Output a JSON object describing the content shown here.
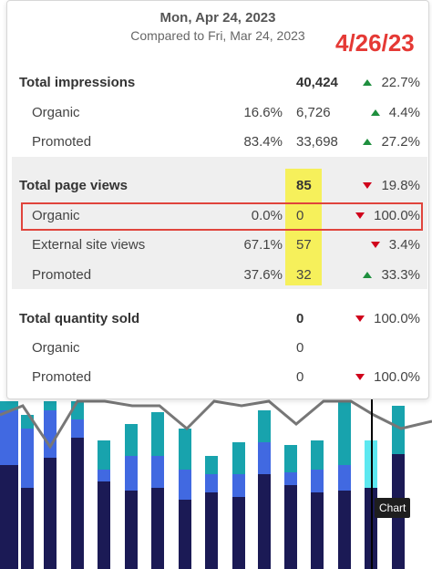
{
  "tooltip": {
    "date": "Mon, Apr 24, 2023",
    "compared": "Compared to Fri, Mar 24, 2023",
    "annotation": "4/26/23"
  },
  "rows": [
    {
      "label": "Total impressions",
      "pct": "",
      "value": "40,424",
      "change": "22.7%",
      "dir": "up"
    },
    {
      "label": "Organic",
      "pct": "16.6%",
      "value": "6,726",
      "change": "4.4%",
      "dir": "up"
    },
    {
      "label": "Promoted",
      "pct": "83.4%",
      "value": "33,698",
      "change": "27.2%",
      "dir": "up"
    },
    {
      "label": "Total page views",
      "pct": "",
      "value": "85",
      "change": "19.8%",
      "dir": "down"
    },
    {
      "label": "Organic",
      "pct": "0.0%",
      "value": "0",
      "change": "100.0%",
      "dir": "down"
    },
    {
      "label": "External site views",
      "pct": "67.1%",
      "value": "57",
      "change": "3.4%",
      "dir": "down"
    },
    {
      "label": "Promoted",
      "pct": "37.6%",
      "value": "32",
      "change": "33.3%",
      "dir": "up"
    },
    {
      "label": "Total quantity sold",
      "pct": "",
      "value": "0",
      "change": "100.0%",
      "dir": "down"
    },
    {
      "label": "Organic",
      "pct": "",
      "value": "0",
      "change": "",
      "dir": ""
    },
    {
      "label": "Promoted",
      "pct": "",
      "value": "0",
      "change": "100.0%",
      "dir": "down"
    }
  ],
  "chart_hover_label": "Chart",
  "colors": {
    "up": "#1e8f3e",
    "down": "#d0021b",
    "annotation": "#e53935",
    "highlight": "#f6f04a",
    "bar_dark": "#1b1a55",
    "bar_blue": "#4169e1",
    "bar_teal": "#18a3ad"
  }
}
